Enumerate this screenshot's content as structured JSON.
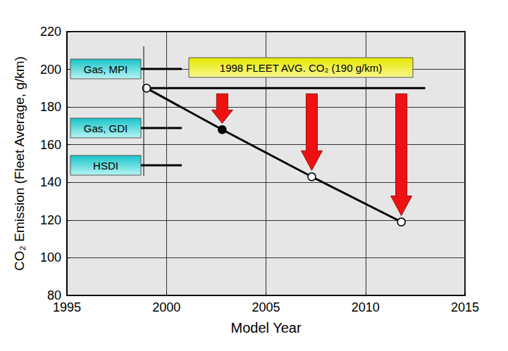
{
  "chart_data": {
    "type": "line",
    "xlabel": "Model Year",
    "ylabel": "CO₂ Emission (Fleet Average, g/km)",
    "series": [
      {
        "x": [
          1999,
          2002.8,
          2007.3,
          2011.8
        ],
        "values": [
          190,
          168,
          143,
          119
        ],
        "color": "#000000",
        "marker": "circle",
        "colors": [
          "#ffffff",
          "#000000",
          "#ffffff",
          "#ffffff"
        ]
      },
      {
        "x": [
          1999,
          2013
        ],
        "values": [
          190,
          190
        ],
        "color": "#000000",
        "marker": "none"
      }
    ],
    "annotations": [
      "Gas, MPI",
      "1998 FLEET AVG. CO₂ (190 g/km)",
      "Gas, GDI",
      "HSDI"
    ],
    "xlim": [
      1995,
      2015
    ],
    "xticks": [
      1995,
      2000,
      2005,
      2010,
      2015
    ],
    "ylim": [
      80,
      220
    ],
    "yticks": [
      80,
      100,
      120,
      140,
      160,
      180,
      200,
      220
    ],
    "grid": true
  }
}
